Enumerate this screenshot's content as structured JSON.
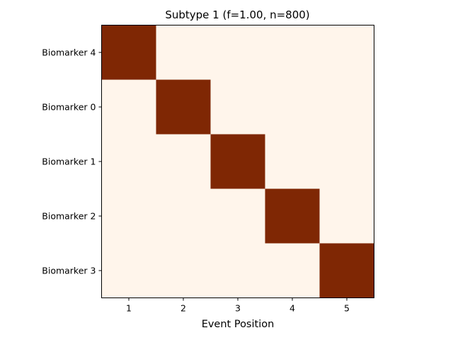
{
  "chart_data": {
    "type": "heatmap",
    "title": "Subtype 1 (f=1.00, n=800)",
    "xlabel": "Event Position",
    "ylabel": "",
    "x_ticks": [
      "1",
      "2",
      "3",
      "4",
      "5"
    ],
    "y_ticks": [
      "Biomarker 4",
      "Biomarker 0",
      "Biomarker 1",
      "Biomarker 2",
      "Biomarker 3"
    ],
    "values": [
      [
        1,
        0,
        0,
        0,
        0
      ],
      [
        0,
        1,
        0,
        0,
        0
      ],
      [
        0,
        0,
        1,
        0,
        0
      ],
      [
        0,
        0,
        0,
        1,
        0
      ],
      [
        0,
        0,
        0,
        0,
        1
      ]
    ],
    "value_range": [
      0,
      1
    ],
    "colors": {
      "low": "#fff5eb",
      "high": "#7f2704"
    },
    "grid": false,
    "legend": "none"
  }
}
